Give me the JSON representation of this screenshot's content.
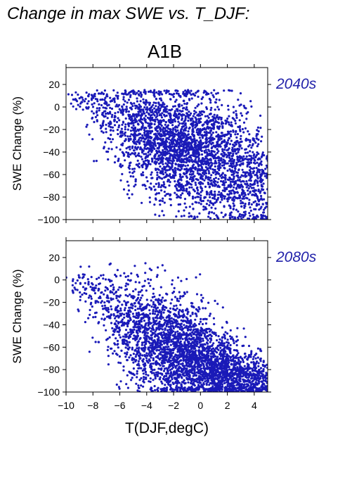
{
  "title": "Change in max SWE vs. T_DJF:",
  "scenario": "A1B",
  "point_color": "#1a1ab8",
  "period_color": "#2222aa",
  "chart_data": [
    {
      "type": "scatter",
      "period_label": "2040s",
      "ylabel": "SWE Change (%)",
      "xlabel": "",
      "xlim": [
        -10,
        5
      ],
      "ylim": [
        -100,
        35
      ],
      "yticks": [
        20,
        0,
        -20,
        -40,
        -60,
        -80,
        -100
      ],
      "xticks": [],
      "ytick_labels": [
        "20",
        "0",
        "−20",
        "−40",
        "−60",
        "−80",
        "−100"
      ],
      "xtick_labels": [],
      "clusters": [
        {
          "x": -8.5,
          "y": 5,
          "sx": 0.9,
          "sy": 5,
          "n": 60
        },
        {
          "x": -6.5,
          "y": -5,
          "sx": 1.0,
          "sy": 12,
          "n": 140
        },
        {
          "x": -5.0,
          "y": -20,
          "sx": 1.0,
          "sy": 20,
          "n": 300
        },
        {
          "x": -3.0,
          "y": -30,
          "sx": 1.2,
          "sy": 25,
          "n": 700
        },
        {
          "x": -1.0,
          "y": -35,
          "sx": 1.2,
          "sy": 25,
          "n": 800
        },
        {
          "x": 1.0,
          "y": -45,
          "sx": 1.2,
          "sy": 28,
          "n": 650
        },
        {
          "x": 3.0,
          "y": -55,
          "sx": 1.1,
          "sy": 25,
          "n": 400
        },
        {
          "x": 4.5,
          "y": -70,
          "sx": 0.5,
          "sy": 20,
          "n": 150
        }
      ]
    },
    {
      "type": "scatter",
      "period_label": "2080s",
      "ylabel": "SWE Change (%)",
      "xlabel": "T(DJF,degC)",
      "xlim": [
        -10,
        5
      ],
      "ylim": [
        -100,
        35
      ],
      "yticks": [
        20,
        0,
        -20,
        -40,
        -60,
        -80,
        -100
      ],
      "xticks": [
        -10,
        -8,
        -6,
        -4,
        -2,
        0,
        2,
        4
      ],
      "ytick_labels": [
        "20",
        "0",
        "−20",
        "−40",
        "−60",
        "−80",
        "−100"
      ],
      "xtick_labels": [
        "−10",
        "−8",
        "−6",
        "−4",
        "−2",
        "0",
        "2",
        "4"
      ],
      "clusters": [
        {
          "x": -8.5,
          "y": -5,
          "sx": 0.9,
          "sy": 7,
          "n": 60
        },
        {
          "x": -6.5,
          "y": -25,
          "sx": 1.0,
          "sy": 18,
          "n": 160
        },
        {
          "x": -5.0,
          "y": -45,
          "sx": 1.0,
          "sy": 22,
          "n": 350
        },
        {
          "x": -3.0,
          "y": -55,
          "sx": 1.2,
          "sy": 25,
          "n": 700
        },
        {
          "x": -1.0,
          "y": -65,
          "sx": 1.2,
          "sy": 22,
          "n": 800
        },
        {
          "x": 1.0,
          "y": -78,
          "sx": 1.2,
          "sy": 16,
          "n": 700
        },
        {
          "x": 3.0,
          "y": -85,
          "sx": 1.1,
          "sy": 12,
          "n": 450
        },
        {
          "x": 4.5,
          "y": -92,
          "sx": 0.5,
          "sy": 8,
          "n": 150
        }
      ]
    }
  ]
}
